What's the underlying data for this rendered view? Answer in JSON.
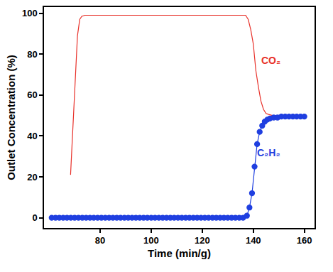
{
  "chart_data": {
    "type": "line",
    "x_label": "Time (min/g)",
    "y_label": "Outlet Concentration (%)",
    "xlim": [
      58,
      164
    ],
    "xticks": [
      80,
      100,
      120,
      140,
      160
    ],
    "ylim": [
      -5,
      103
    ],
    "yticks": [
      0,
      20,
      40,
      60,
      80,
      100
    ],
    "grid": false,
    "series": [
      {
        "name": "CO₂",
        "color": "#e8312a",
        "marker": "circle-open",
        "line_style": "solid",
        "x": [
          68.4,
          70.3,
          71.1,
          72,
          72.8,
          74,
          75.5,
          77,
          78.5,
          80,
          81.5,
          83,
          84.5,
          86,
          87.5,
          89,
          90.5,
          92,
          93.5,
          95,
          96.5,
          98,
          99.5,
          101,
          102.5,
          104,
          105.5,
          107,
          108.5,
          110,
          111.5,
          113,
          114.5,
          116,
          117.5,
          119,
          120.5,
          122,
          123.5,
          125,
          126.5,
          128,
          129.5,
          131,
          132.5,
          134,
          135.5,
          137,
          138,
          139,
          140,
          141,
          142,
          143,
          144,
          145,
          146,
          147.5,
          149,
          150.5,
          152,
          153.5,
          155,
          156.5,
          158,
          160
        ],
        "values": [
          21,
          68,
          89,
          97,
          98.5,
          99,
          99,
          99,
          99,
          99,
          99,
          99,
          99,
          99,
          99,
          99,
          99,
          99,
          99,
          99,
          99,
          99,
          99,
          99,
          99,
          99,
          99,
          99,
          99,
          99,
          99,
          99,
          99,
          99,
          99,
          99,
          99,
          99,
          99,
          99,
          99,
          99,
          99,
          99,
          99,
          99,
          99,
          99,
          97,
          92,
          85,
          72,
          64,
          57,
          53,
          51,
          50.5,
          50,
          50,
          50,
          50,
          50,
          50,
          50,
          50,
          50
        ]
      },
      {
        "name": "C₂H₂",
        "color": "#1f3fe0",
        "marker": "circle",
        "line_style": "solid",
        "x": [
          61,
          62.5,
          64,
          65.5,
          67,
          68.5,
          70,
          71.5,
          73,
          74.5,
          76,
          77.5,
          79,
          80.5,
          82,
          83.5,
          85,
          86.5,
          88,
          89.5,
          91,
          92.5,
          94,
          95.5,
          97,
          98.5,
          100,
          101.5,
          103,
          104.5,
          106,
          107.5,
          109,
          110.5,
          112,
          113.5,
          115,
          116.5,
          118,
          119.5,
          121,
          122.5,
          124,
          125.5,
          127,
          128.5,
          130,
          131.5,
          133,
          134.5,
          136,
          137.5,
          138.5,
          139.5,
          140.5,
          141.5,
          142.5,
          143.5,
          144.5,
          145.5,
          146.5,
          148,
          149.5,
          151,
          152.5,
          154,
          155.5,
          157,
          158.5,
          160
        ],
        "values": [
          0,
          0,
          0,
          0,
          0,
          0,
          0,
          0,
          0,
          0,
          0,
          0,
          0,
          0,
          0,
          0,
          0,
          0,
          0,
          0,
          0,
          0,
          0,
          0,
          0,
          0,
          0,
          0,
          0,
          0,
          0,
          0,
          0,
          0,
          0,
          0,
          0,
          0,
          0,
          0,
          0,
          0,
          0,
          0,
          0,
          0,
          0,
          0,
          0,
          0,
          0,
          1,
          5,
          12,
          25,
          36,
          42,
          45,
          47,
          48,
          48.5,
          49,
          49,
          49.5,
          49.5,
          49.5,
          49.5,
          49.5,
          49.5,
          49.5
        ]
      }
    ]
  }
}
